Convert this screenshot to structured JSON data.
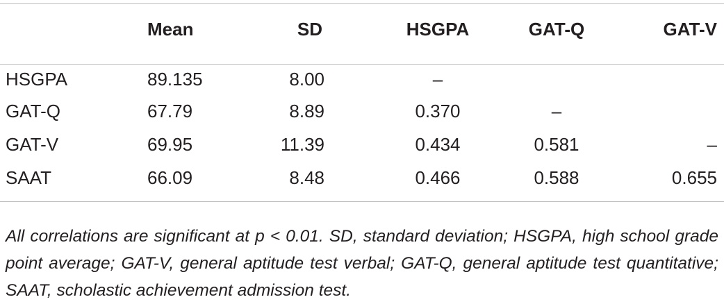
{
  "table": {
    "headers": [
      "",
      "Mean",
      "SD",
      "HSGPA",
      "GAT-Q",
      "GAT-V"
    ],
    "rows": [
      {
        "label": "HSGPA",
        "mean": "89.135",
        "sd": "8.00",
        "hsgpa": "–",
        "gatq": "",
        "gatv": ""
      },
      {
        "label": "GAT-Q",
        "mean": "67.79",
        "sd": "8.89",
        "hsgpa": "0.370",
        "gatq": "–",
        "gatv": ""
      },
      {
        "label": "GAT-V",
        "mean": "69.95",
        "sd": "11.39",
        "hsgpa": "0.434",
        "gatq": "0.581",
        "gatv": "–"
      },
      {
        "label": "SAAT",
        "mean": "66.09",
        "sd": "8.48",
        "hsgpa": "0.466",
        "gatq": "0.588",
        "gatv": "0.655"
      }
    ]
  },
  "footnote": "All correlations are significant at p < 0.01. SD, standard deviation; HSGPA, high school grade point average; GAT-V, general aptitude test verbal; GAT-Q, general aptitude test quantitative; SAAT, scholastic achievement admission test."
}
